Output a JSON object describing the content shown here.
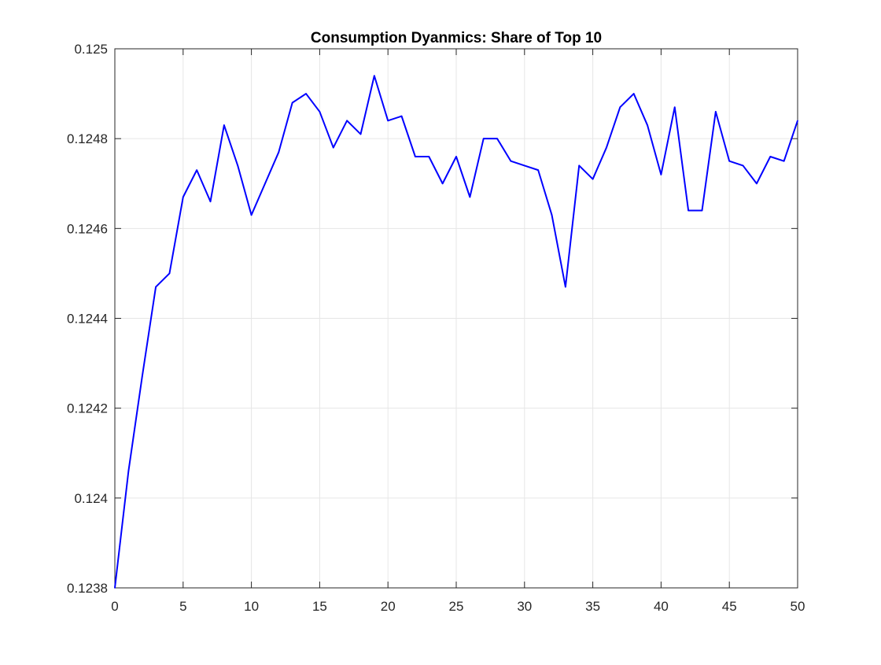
{
  "chart_data": {
    "type": "line",
    "title": "Consumption Dyanmics: Share of Top 10",
    "xlabel": "",
    "ylabel": "",
    "xlim": [
      0,
      50
    ],
    "ylim": [
      0.1238,
      0.125
    ],
    "grid": true,
    "x_ticks": [
      0,
      5,
      10,
      15,
      20,
      25,
      30,
      35,
      40,
      45,
      50
    ],
    "x_tick_labels": [
      "0",
      "5",
      "10",
      "15",
      "20",
      "25",
      "30",
      "35",
      "40",
      "45",
      "50"
    ],
    "y_ticks": [
      0.1238,
      0.124,
      0.1242,
      0.1244,
      0.1246,
      0.1248,
      0.125
    ],
    "y_tick_labels": [
      "0.1238",
      "0.124",
      "0.1242",
      "0.1244",
      "0.1246",
      "0.1248",
      "0.125"
    ],
    "series": [
      {
        "color": "#0000ff",
        "x": [
          0,
          1,
          2,
          3,
          4,
          5,
          6,
          7,
          8,
          9,
          10,
          11,
          12,
          13,
          14,
          15,
          16,
          17,
          18,
          19,
          20,
          21,
          22,
          23,
          24,
          25,
          26,
          27,
          28,
          29,
          30,
          31,
          32,
          33,
          34,
          35,
          36,
          37,
          38,
          39,
          40,
          41,
          42,
          43,
          44,
          45,
          46,
          47,
          48,
          49,
          50
        ],
        "values": [
          0.1238,
          0.12406,
          0.12427,
          0.12447,
          0.1245,
          0.12467,
          0.12473,
          0.12466,
          0.12483,
          0.12474,
          0.12463,
          0.1247,
          0.12477,
          0.12488,
          0.1249,
          0.12486,
          0.12478,
          0.12484,
          0.12481,
          0.12494,
          0.12484,
          0.12485,
          0.12476,
          0.12476,
          0.1247,
          0.12476,
          0.12467,
          0.1248,
          0.1248,
          0.12475,
          0.12474,
          0.12473,
          0.12463,
          0.12447,
          0.12474,
          0.12471,
          0.12478,
          0.12487,
          0.1249,
          0.12483,
          0.12472,
          0.12487,
          0.12464,
          0.12464,
          0.12486,
          0.12475,
          0.12474,
          0.1247,
          0.12476,
          0.12475,
          0.12484
        ]
      }
    ]
  }
}
